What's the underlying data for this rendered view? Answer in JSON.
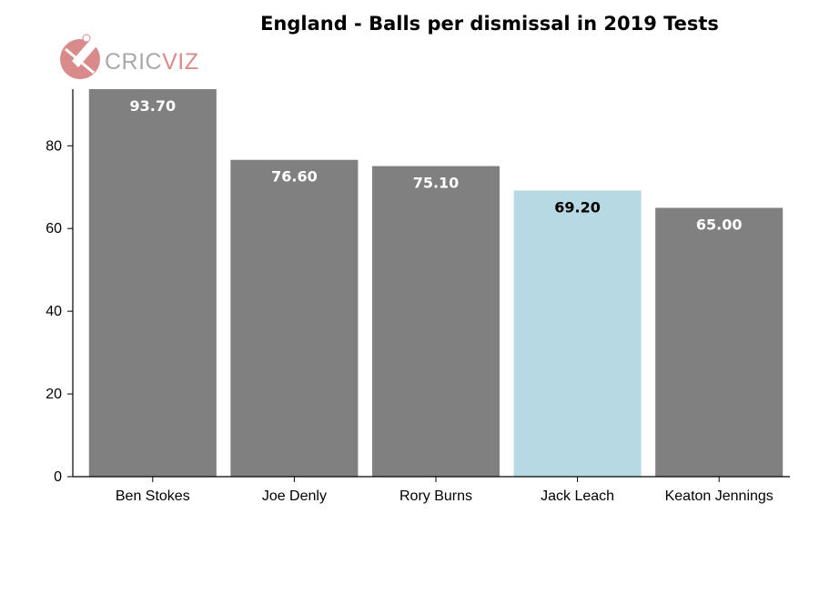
{
  "chart_data": {
    "type": "bar",
    "title": "England - Balls per dismissal in 2019 Tests",
    "categories": [
      "Ben Stokes",
      "Joe Denly",
      "Rory Burns",
      "Jack Leach",
      "Keaton Jennings"
    ],
    "values": [
      93.7,
      76.6,
      75.1,
      69.2,
      65.0
    ],
    "value_labels": [
      "93.70",
      "76.60",
      "75.10",
      "69.20",
      "65.00"
    ],
    "highlighted": "Jack Leach",
    "yticks": [
      0,
      20,
      40,
      60,
      80
    ],
    "ylim": [
      0,
      93.7
    ],
    "xlabel": "",
    "ylabel": "",
    "grid": false,
    "colors": {
      "bar": "#808080",
      "highlight": "#b6d9e3",
      "label_on_bar": "#ffffff",
      "label_on_highlight": "#000000"
    }
  },
  "logo": {
    "text_left": "CRIC",
    "text_right": "VIZ",
    "color": "#d98b8b",
    "icon": "cricket-bat-ball-icon"
  }
}
